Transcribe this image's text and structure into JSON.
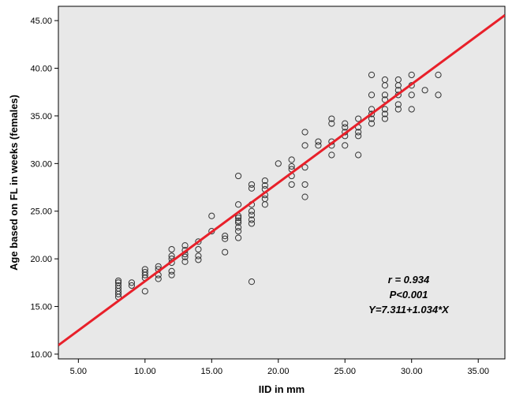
{
  "chart_data": {
    "type": "scatter",
    "xlabel": "IID in mm",
    "ylabel": "Age based on FL in weeks (females)",
    "xlim": [
      3.5,
      37
    ],
    "ylim": [
      9.5,
      46.5
    ],
    "xticks": [
      "5.00",
      "10.00",
      "15.00",
      "20.00",
      "25.00",
      "30.00",
      "35.00"
    ],
    "yticks": [
      "10.00",
      "15.00",
      "20.00",
      "25.00",
      "30.00",
      "35.00",
      "40.00",
      "45.00"
    ],
    "grid": false,
    "colors": {
      "plot_background": "#e8e8e8",
      "fit_line": "#e8202a",
      "marker_stroke": "#333333"
    },
    "fit_line": {
      "intercept": 7.311,
      "slope": 1.034
    },
    "annotations": [
      "r = 0.934",
      "P<0.001",
      "Y=7.311+1.034*X"
    ],
    "points": [
      [
        8,
        16.0
      ],
      [
        8,
        16.3
      ],
      [
        8,
        16.6
      ],
      [
        8,
        16.9
      ],
      [
        8,
        17.2
      ],
      [
        8,
        17.5
      ],
      [
        8,
        17.7
      ],
      [
        9,
        17.2
      ],
      [
        9,
        17.5
      ],
      [
        10,
        16.6
      ],
      [
        10,
        18.0
      ],
      [
        10,
        18.3
      ],
      [
        10,
        18.6
      ],
      [
        10,
        18.9
      ],
      [
        11,
        17.9
      ],
      [
        11,
        18.3
      ],
      [
        11,
        18.9
      ],
      [
        11,
        19.2
      ],
      [
        12,
        18.3
      ],
      [
        12,
        18.7
      ],
      [
        12,
        19.6
      ],
      [
        12,
        20.0
      ],
      [
        12,
        20.3
      ],
      [
        12,
        21.0
      ],
      [
        13,
        19.7
      ],
      [
        13,
        20.2
      ],
      [
        13,
        20.5
      ],
      [
        13,
        20.9
      ],
      [
        13,
        21.4
      ],
      [
        14,
        19.9
      ],
      [
        14,
        20.3
      ],
      [
        14,
        21.0
      ],
      [
        14,
        21.8
      ],
      [
        15,
        22.9
      ],
      [
        15,
        24.5
      ],
      [
        16,
        20.7
      ],
      [
        16,
        22.1
      ],
      [
        16,
        22.4
      ],
      [
        17,
        22.2
      ],
      [
        17,
        22.9
      ],
      [
        17,
        23.3
      ],
      [
        17,
        23.8
      ],
      [
        17,
        24.0
      ],
      [
        17,
        24.3
      ],
      [
        17,
        24.5
      ],
      [
        17,
        25.7
      ],
      [
        17,
        28.7
      ],
      [
        18,
        17.6
      ],
      [
        18,
        23.7
      ],
      [
        18,
        24.1
      ],
      [
        18,
        24.6
      ],
      [
        18,
        25.0
      ],
      [
        18,
        25.7
      ],
      [
        18,
        27.4
      ],
      [
        18,
        27.8
      ],
      [
        19,
        25.7
      ],
      [
        19,
        26.3
      ],
      [
        19,
        26.7
      ],
      [
        19,
        27.3
      ],
      [
        19,
        27.7
      ],
      [
        19,
        28.2
      ],
      [
        20,
        30.0
      ],
      [
        21,
        27.8
      ],
      [
        21,
        28.7
      ],
      [
        21,
        29.4
      ],
      [
        21,
        29.7
      ],
      [
        21,
        30.4
      ],
      [
        22,
        26.5
      ],
      [
        22,
        27.8
      ],
      [
        22,
        29.6
      ],
      [
        22,
        31.9
      ],
      [
        22,
        33.3
      ],
      [
        23,
        31.9
      ],
      [
        23,
        32.3
      ],
      [
        24,
        30.9
      ],
      [
        24,
        31.9
      ],
      [
        24,
        32.3
      ],
      [
        24,
        34.2
      ],
      [
        24,
        34.7
      ],
      [
        25,
        31.9
      ],
      [
        25,
        32.9
      ],
      [
        25,
        33.3
      ],
      [
        25,
        33.8
      ],
      [
        25,
        34.2
      ],
      [
        26,
        30.9
      ],
      [
        26,
        32.9
      ],
      [
        26,
        33.3
      ],
      [
        26,
        33.8
      ],
      [
        26,
        34.7
      ],
      [
        27,
        34.2
      ],
      [
        27,
        34.7
      ],
      [
        27,
        35.2
      ],
      [
        27,
        35.7
      ],
      [
        27,
        37.2
      ],
      [
        27,
        39.3
      ],
      [
        28,
        34.7
      ],
      [
        28,
        35.2
      ],
      [
        28,
        35.7
      ],
      [
        28,
        36.7
      ],
      [
        28,
        37.2
      ],
      [
        28,
        38.2
      ],
      [
        28,
        38.8
      ],
      [
        29,
        35.7
      ],
      [
        29,
        36.2
      ],
      [
        29,
        37.2
      ],
      [
        29,
        37.7
      ],
      [
        29,
        38.2
      ],
      [
        29,
        38.8
      ],
      [
        30,
        35.7
      ],
      [
        30,
        37.2
      ],
      [
        30,
        38.2
      ],
      [
        30,
        39.3
      ],
      [
        31,
        37.7
      ],
      [
        32,
        37.2
      ],
      [
        32,
        39.3
      ]
    ]
  }
}
